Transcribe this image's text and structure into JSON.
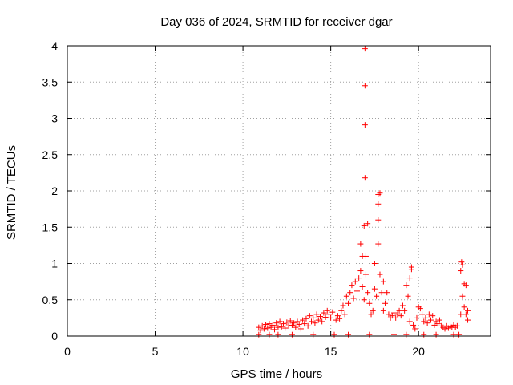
{
  "chart_data": {
    "type": "scatter",
    "title": "Day 036 of 2024, SRMTID for receiver dgar",
    "xlabel": "GPS time / hours",
    "ylabel": "SRMTID / TECUs",
    "xlim": [
      0,
      24.1
    ],
    "ylim": [
      0,
      4
    ],
    "xticks": [
      0,
      5,
      10,
      15,
      20
    ],
    "xtick_labels": [
      "0",
      "5",
      "10",
      "15",
      "20"
    ],
    "yticks": [
      0,
      0.5,
      1,
      1.5,
      2,
      2.5,
      3,
      3.5,
      4
    ],
    "ytick_labels": [
      "0",
      "0.5",
      "1",
      "1.5",
      "2",
      "2.5",
      "3",
      "3.5",
      "4"
    ],
    "grid": true,
    "marker": "+",
    "marker_color": "#ff0000",
    "series": [
      {
        "name": "SRMTID",
        "points": [
          [
            10.9,
            0.02
          ],
          [
            10.9,
            0.12
          ],
          [
            11.0,
            0.08
          ],
          [
            11.1,
            0.14
          ],
          [
            11.2,
            0.1
          ],
          [
            11.3,
            0.16
          ],
          [
            11.4,
            0.11
          ],
          [
            11.5,
            0.02
          ],
          [
            11.5,
            0.17
          ],
          [
            11.6,
            0.12
          ],
          [
            11.7,
            0.15
          ],
          [
            11.8,
            0.09
          ],
          [
            11.9,
            0.18
          ],
          [
            12.0,
            0.12
          ],
          [
            12.0,
            0.02
          ],
          [
            12.1,
            0.2
          ],
          [
            12.2,
            0.13
          ],
          [
            12.3,
            0.17
          ],
          [
            12.4,
            0.11
          ],
          [
            12.5,
            0.19
          ],
          [
            12.6,
            0.14
          ],
          [
            12.7,
            0.21
          ],
          [
            12.8,
            0.15
          ],
          [
            12.8,
            0.02
          ],
          [
            12.9,
            0.18
          ],
          [
            13.0,
            0.12
          ],
          [
            13.1,
            0.2
          ],
          [
            13.2,
            0.16
          ],
          [
            13.3,
            0.1
          ],
          [
            13.4,
            0.22
          ],
          [
            13.5,
            0.17
          ],
          [
            13.6,
            0.24
          ],
          [
            13.7,
            0.14
          ],
          [
            13.8,
            0.28
          ],
          [
            13.9,
            0.2
          ],
          [
            14.0,
            0.25
          ],
          [
            14.0,
            0.02
          ],
          [
            14.1,
            0.18
          ],
          [
            14.2,
            0.3
          ],
          [
            14.3,
            0.22
          ],
          [
            14.4,
            0.27
          ],
          [
            14.5,
            0.2
          ],
          [
            14.6,
            0.32
          ],
          [
            14.7,
            0.26
          ],
          [
            14.8,
            0.35
          ],
          [
            14.9,
            0.3
          ],
          [
            15.0,
            0.25
          ],
          [
            15.1,
            0.33
          ],
          [
            15.2,
            0.02
          ],
          [
            15.3,
            0.22
          ],
          [
            15.4,
            0.28
          ],
          [
            15.5,
            0.24
          ],
          [
            15.6,
            0.35
          ],
          [
            15.7,
            0.42
          ],
          [
            15.8,
            0.3
          ],
          [
            15.9,
            0.55
          ],
          [
            16.0,
            0.45
          ],
          [
            16.0,
            0.02
          ],
          [
            16.1,
            0.6
          ],
          [
            16.2,
            0.7
          ],
          [
            16.3,
            0.52
          ],
          [
            16.4,
            0.75
          ],
          [
            16.5,
            0.62
          ],
          [
            16.6,
            0.8
          ],
          [
            16.7,
            0.9
          ],
          [
            16.7,
            1.27
          ],
          [
            16.8,
            0.68
          ],
          [
            16.8,
            1.1
          ],
          [
            16.9,
            0.5
          ],
          [
            16.9,
            1.52
          ],
          [
            16.95,
            3.96
          ],
          [
            16.95,
            3.45
          ],
          [
            16.95,
            2.91
          ],
          [
            16.95,
            2.18
          ],
          [
            17.0,
            0.85
          ],
          [
            17.0,
            1.1
          ],
          [
            17.1,
            1.55
          ],
          [
            17.1,
            0.6
          ],
          [
            17.2,
            0.45
          ],
          [
            17.2,
            0.02
          ],
          [
            17.3,
            0.3
          ],
          [
            17.4,
            0.35
          ],
          [
            17.5,
            0.65
          ],
          [
            17.5,
            1.0
          ],
          [
            17.6,
            0.55
          ],
          [
            17.7,
            1.95
          ],
          [
            17.7,
            1.82
          ],
          [
            17.7,
            1.6
          ],
          [
            17.7,
            1.27
          ],
          [
            17.8,
            0.85
          ],
          [
            17.8,
            1.97
          ],
          [
            17.9,
            0.6
          ],
          [
            18.0,
            0.75
          ],
          [
            18.0,
            0.35
          ],
          [
            18.1,
            0.45
          ],
          [
            18.2,
            0.6
          ],
          [
            18.3,
            0.3
          ],
          [
            18.4,
            0.25
          ],
          [
            18.5,
            0.28
          ],
          [
            18.6,
            0.02
          ],
          [
            18.6,
            0.32
          ],
          [
            18.7,
            0.25
          ],
          [
            18.8,
            0.3
          ],
          [
            18.9,
            0.35
          ],
          [
            19.0,
            0.28
          ],
          [
            19.1,
            0.42
          ],
          [
            19.2,
            0.35
          ],
          [
            19.3,
            0.02
          ],
          [
            19.3,
            0.7
          ],
          [
            19.4,
            0.55
          ],
          [
            19.5,
            0.8
          ],
          [
            19.5,
            0.2
          ],
          [
            19.6,
            0.95
          ],
          [
            19.6,
            0.92
          ],
          [
            19.7,
            0.15
          ],
          [
            19.8,
            0.1
          ],
          [
            19.9,
            0.25
          ],
          [
            20.0,
            0.4
          ],
          [
            20.1,
            0.38
          ],
          [
            20.2,
            0.3
          ],
          [
            20.3,
            0.02
          ],
          [
            20.3,
            0.2
          ],
          [
            20.4,
            0.25
          ],
          [
            20.5,
            0.18
          ],
          [
            20.6,
            0.3
          ],
          [
            20.7,
            0.22
          ],
          [
            20.8,
            0.28
          ],
          [
            20.9,
            0.15
          ],
          [
            21.0,
            0.02
          ],
          [
            21.0,
            0.2
          ],
          [
            21.1,
            0.17
          ],
          [
            21.2,
            0.22
          ],
          [
            21.3,
            0.14
          ],
          [
            21.4,
            0.12
          ],
          [
            21.5,
            0.1
          ],
          [
            21.6,
            0.14
          ],
          [
            21.7,
            0.11
          ],
          [
            21.8,
            0.13
          ],
          [
            21.9,
            0.12
          ],
          [
            22.0,
            0.02
          ],
          [
            22.0,
            0.15
          ],
          [
            22.1,
            0.12
          ],
          [
            22.2,
            0.14
          ],
          [
            22.3,
            0.02
          ],
          [
            22.4,
            0.3
          ],
          [
            22.4,
            0.9
          ],
          [
            22.45,
            1.02
          ],
          [
            22.5,
            0.98
          ],
          [
            22.5,
            0.55
          ],
          [
            22.6,
            0.72
          ],
          [
            22.6,
            0.4
          ],
          [
            22.7,
            0.7
          ],
          [
            22.7,
            0.3
          ],
          [
            22.8,
            0.22
          ],
          [
            22.8,
            0.35
          ]
        ]
      }
    ]
  }
}
